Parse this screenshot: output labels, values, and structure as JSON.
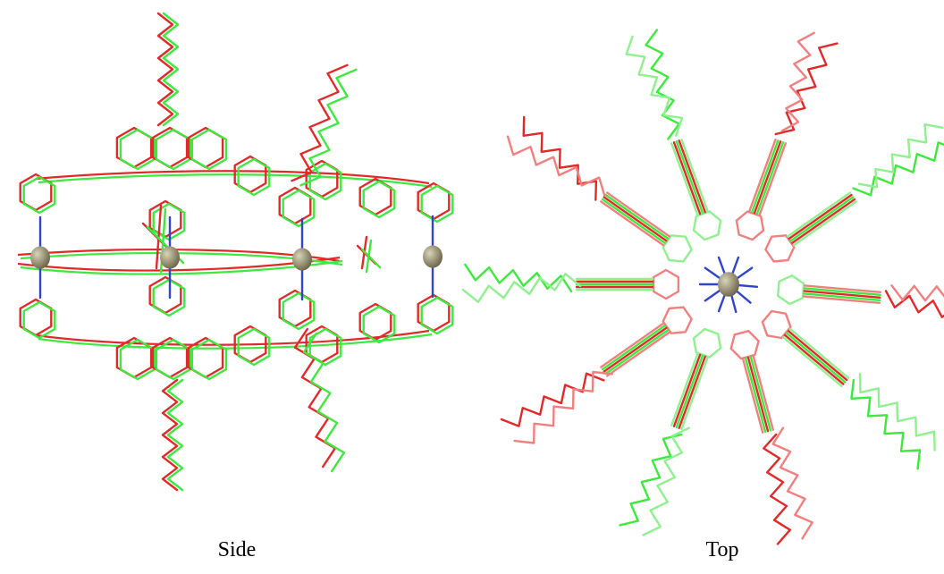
{
  "panels": [
    {
      "caption": "Side"
    },
    {
      "caption": "Top"
    }
  ]
}
